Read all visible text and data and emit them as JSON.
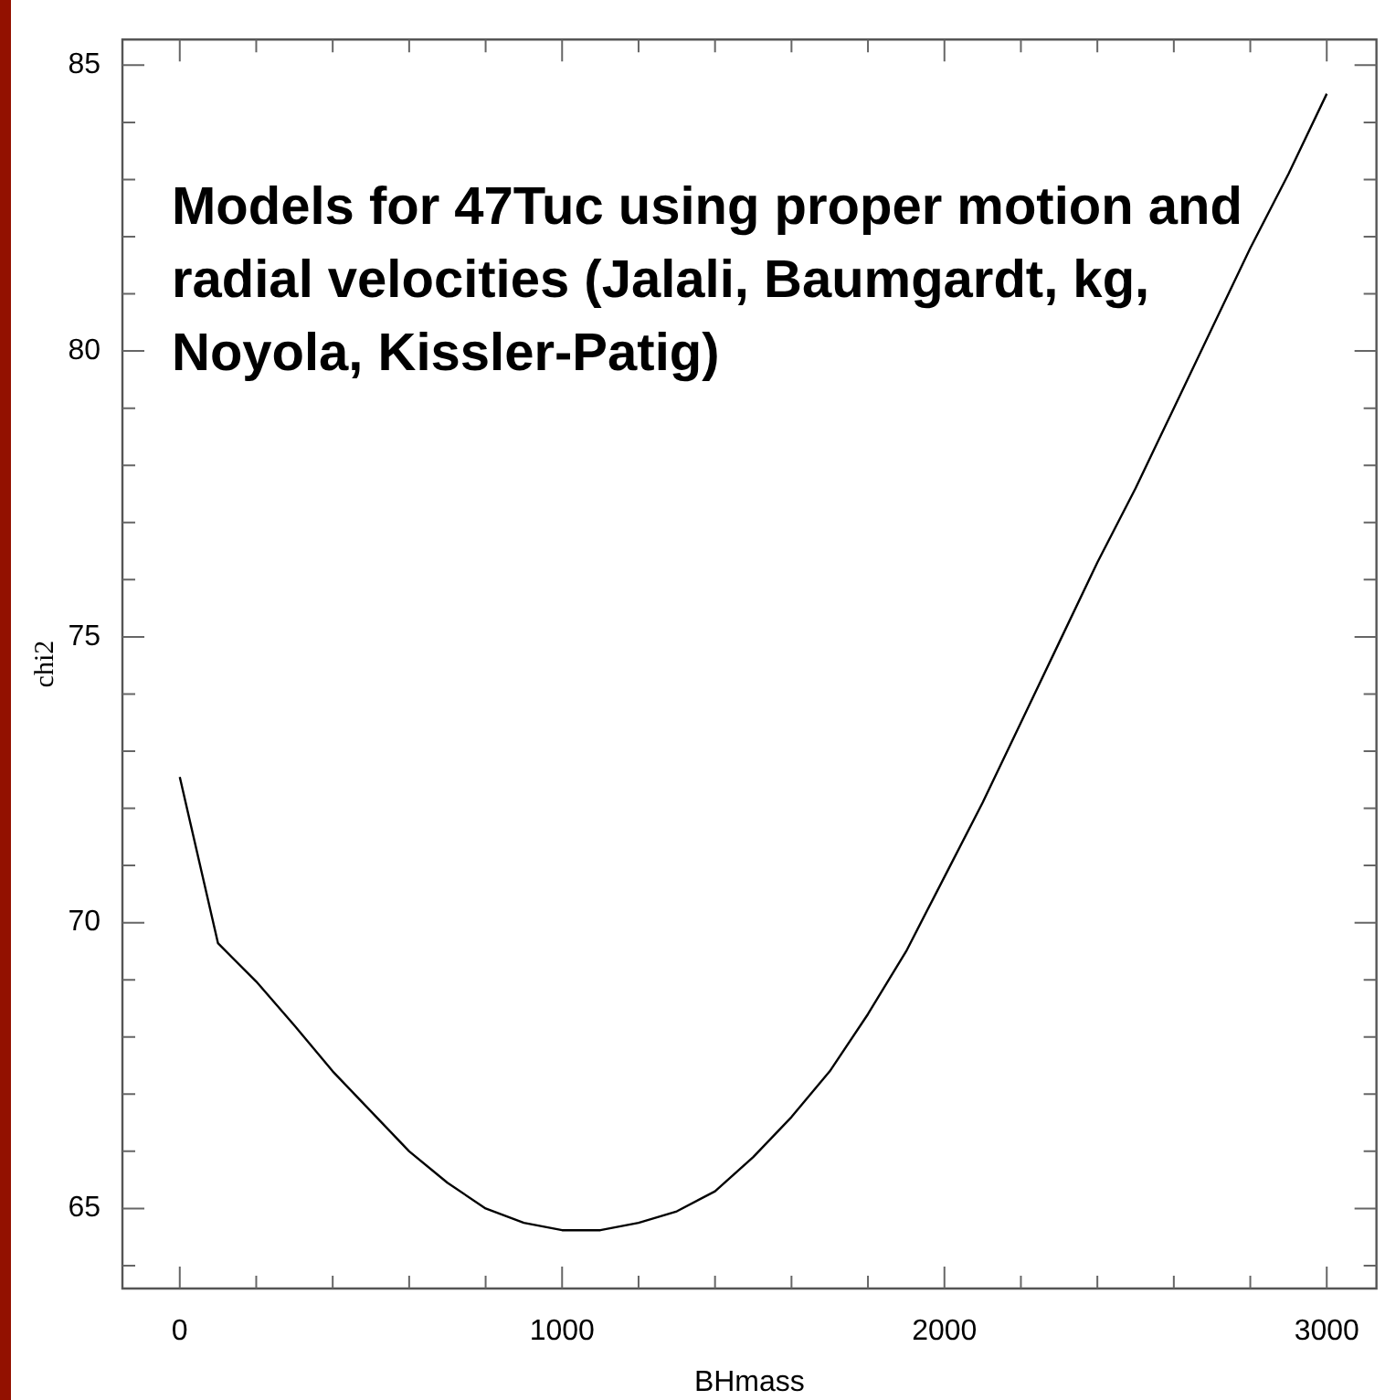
{
  "chart_data": {
    "type": "line",
    "title": "Models for 47Tuc using proper motion and radial velocities (Jalali, Baumgardt, kg, Noyola, Kissler-Patig)",
    "xlabel": "BHmass",
    "ylabel": "chi2",
    "color": "#000000",
    "x": [
      0,
      100,
      200,
      300,
      400,
      500,
      600,
      700,
      800,
      900,
      1000,
      1100,
      1200,
      1300,
      1400,
      1500,
      1600,
      1700,
      1800,
      1900,
      2000,
      2100,
      2200,
      2300,
      2400,
      2500,
      2600,
      2700,
      2800,
      2900,
      3000
    ],
    "values": [
      72.55,
      69.64,
      68.97,
      68.2,
      67.4,
      66.7,
      66.0,
      65.45,
      65.0,
      64.75,
      64.62,
      64.62,
      64.75,
      64.95,
      65.3,
      65.9,
      66.6,
      67.4,
      68.4,
      69.5,
      70.8,
      72.1,
      73.5,
      74.9,
      76.3,
      77.6,
      79.0,
      80.4,
      81.8,
      83.1,
      84.5
    ],
    "xlim": [
      -150,
      3130
    ],
    "ylim": [
      63.6,
      85.45
    ],
    "xticks": [
      0,
      {
        "value": 200,
        "label": null
      },
      {
        "value": 400,
        "label": null
      },
      {
        "value": 600,
        "label": null
      },
      {
        "value": 800,
        "label": null
      },
      1000,
      {
        "value": 1200,
        "label": null
      },
      {
        "value": 1400,
        "label": null
      },
      {
        "value": 1600,
        "label": null
      },
      {
        "value": 1800,
        "label": null
      },
      2000,
      {
        "value": 2200,
        "label": null
      },
      {
        "value": 2400,
        "label": null
      },
      {
        "value": 2600,
        "label": null
      },
      {
        "value": 2800,
        "label": null
      },
      3000
    ],
    "yticks": [
      {
        "value": 64,
        "label": null
      },
      65,
      {
        "value": 66,
        "label": null
      },
      {
        "value": 67,
        "label": null
      },
      {
        "value": 68,
        "label": null
      },
      {
        "value": 69,
        "label": null
      },
      70,
      {
        "value": 71,
        "label": null
      },
      {
        "value": 72,
        "label": null
      },
      {
        "value": 73,
        "label": null
      },
      {
        "value": 74,
        "label": null
      },
      75,
      {
        "value": 76,
        "label": null
      },
      {
        "value": 77,
        "label": null
      },
      {
        "value": 78,
        "label": null
      },
      {
        "value": 79,
        "label": null
      },
      80,
      {
        "value": 81,
        "label": null
      },
      {
        "value": 82,
        "label": null
      },
      {
        "value": 83,
        "label": null
      },
      {
        "value": 84,
        "label": null
      },
      85
    ]
  }
}
